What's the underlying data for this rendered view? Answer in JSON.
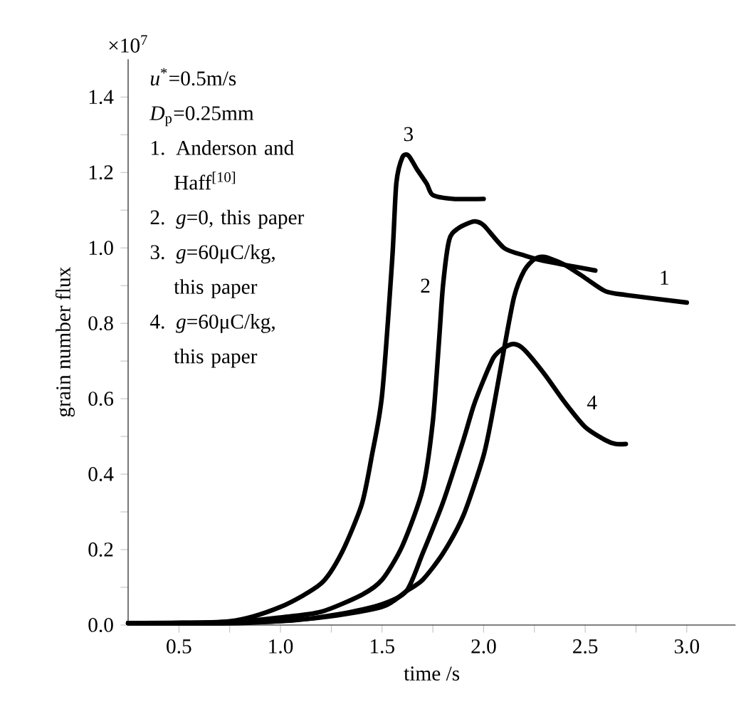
{
  "chart_data": {
    "type": "line",
    "xlabel": "time /s",
    "ylabel": "grain number flux",
    "xlim": [
      0.25,
      3.24
    ],
    "ylim": [
      0,
      1.5
    ],
    "xticks": [
      {
        "value": 0.5,
        "label": "0.5"
      },
      {
        "value": 0.75,
        "label": null
      },
      {
        "value": 1.0,
        "label": "1.0"
      },
      {
        "value": 1.25,
        "label": null
      },
      {
        "value": 1.5,
        "label": "1.5"
      },
      {
        "value": 1.75,
        "label": null
      },
      {
        "value": 2.0,
        "label": "2.0"
      },
      {
        "value": 2.25,
        "label": null
      },
      {
        "value": 2.5,
        "label": "2.5"
      },
      {
        "value": 2.75,
        "label": null
      },
      {
        "value": 3.0,
        "label": "3.0"
      }
    ],
    "yticks": [
      {
        "value": 0,
        "label": "0.0"
      },
      {
        "value": 0.1,
        "label": null
      },
      0.2,
      {
        "value": 0.3,
        "label": null
      },
      0.4,
      {
        "value": 0.5,
        "label": null
      },
      0.6,
      {
        "value": 0.7,
        "label": null
      },
      0.8,
      {
        "value": 0.9,
        "label": null
      },
      {
        "value": 1.0,
        "label": "1.0"
      },
      {
        "value": 1.1,
        "label": null
      },
      1.2,
      {
        "value": 1.3,
        "label": null
      },
      1.4
    ],
    "series": [
      {
        "color": "#000000",
        "x": [
          0.25,
          0.8,
          1.2,
          1.5,
          1.62,
          1.7,
          1.8,
          1.9,
          2.0,
          2.05,
          2.1,
          2.15,
          2.2,
          2.25,
          2.3,
          2.4,
          2.5,
          2.6,
          2.7,
          3.0
        ],
        "values": [
          0.005,
          0.005,
          0.02,
          0.048,
          0.09,
          0.12,
          0.19,
          0.29,
          0.45,
          0.58,
          0.73,
          0.87,
          0.94,
          0.97,
          0.976,
          0.955,
          0.92,
          0.885,
          0.875,
          0.855
        ]
      },
      {
        "color": "#000000",
        "x": [
          0.25,
          0.7,
          1.0,
          1.2,
          1.4,
          1.5,
          1.6,
          1.7,
          1.75,
          1.78,
          1.8,
          1.83,
          1.87,
          1.95,
          2.0,
          2.1,
          2.2,
          2.3,
          2.55
        ],
        "values": [
          0.005,
          0.005,
          0.02,
          0.035,
          0.08,
          0.12,
          0.21,
          0.36,
          0.54,
          0.75,
          0.9,
          1.02,
          1.05,
          1.07,
          1.06,
          1.0,
          0.98,
          0.965,
          0.94
        ]
      },
      {
        "color": "#000000",
        "x": [
          0.25,
          0.75,
          1.0,
          1.2,
          1.3,
          1.4,
          1.45,
          1.5,
          1.55,
          1.57,
          1.6,
          1.63,
          1.67,
          1.72,
          1.75,
          1.85,
          2.0
        ],
        "values": [
          0.005,
          0.01,
          0.048,
          0.11,
          0.19,
          0.32,
          0.45,
          0.61,
          0.97,
          1.17,
          1.24,
          1.245,
          1.21,
          1.17,
          1.14,
          1.13,
          1.13
        ]
      },
      {
        "color": "#000000",
        "x": [
          0.25,
          1.0,
          1.3,
          1.5,
          1.62,
          1.7,
          1.8,
          1.9,
          1.95,
          2.0,
          2.05,
          2.1,
          2.15,
          2.2,
          2.3,
          2.4,
          2.5,
          2.6,
          2.65,
          2.7
        ],
        "values": [
          0.005,
          0.01,
          0.03,
          0.055,
          0.09,
          0.19,
          0.325,
          0.49,
          0.58,
          0.65,
          0.71,
          0.735,
          0.745,
          0.73,
          0.665,
          0.59,
          0.525,
          0.49,
          0.48,
          0.48
        ]
      }
    ],
    "annotations": [
      "×10$^{7}$",
      "*u*$^{*}$=0.5m/s",
      "*D*$_{p}$=0.25mm",
      "1. Anderson and Haff$^{[10]}$",
      "2. *g*=0, this paper",
      "3. *g*=60μC/kg, this paper",
      "4. *g*=60μC/kg, this paper",
      {
        "text": "1",
        "x": 2.7,
        "y": 0.875
      },
      {
        "text": "2",
        "x": 1.8,
        "y": 0.9
      },
      {
        "text": "3",
        "x": 1.63,
        "y": 1.245
      },
      {
        "text": "4",
        "x": 2.4,
        "y": 0.59
      }
    ]
  }
}
